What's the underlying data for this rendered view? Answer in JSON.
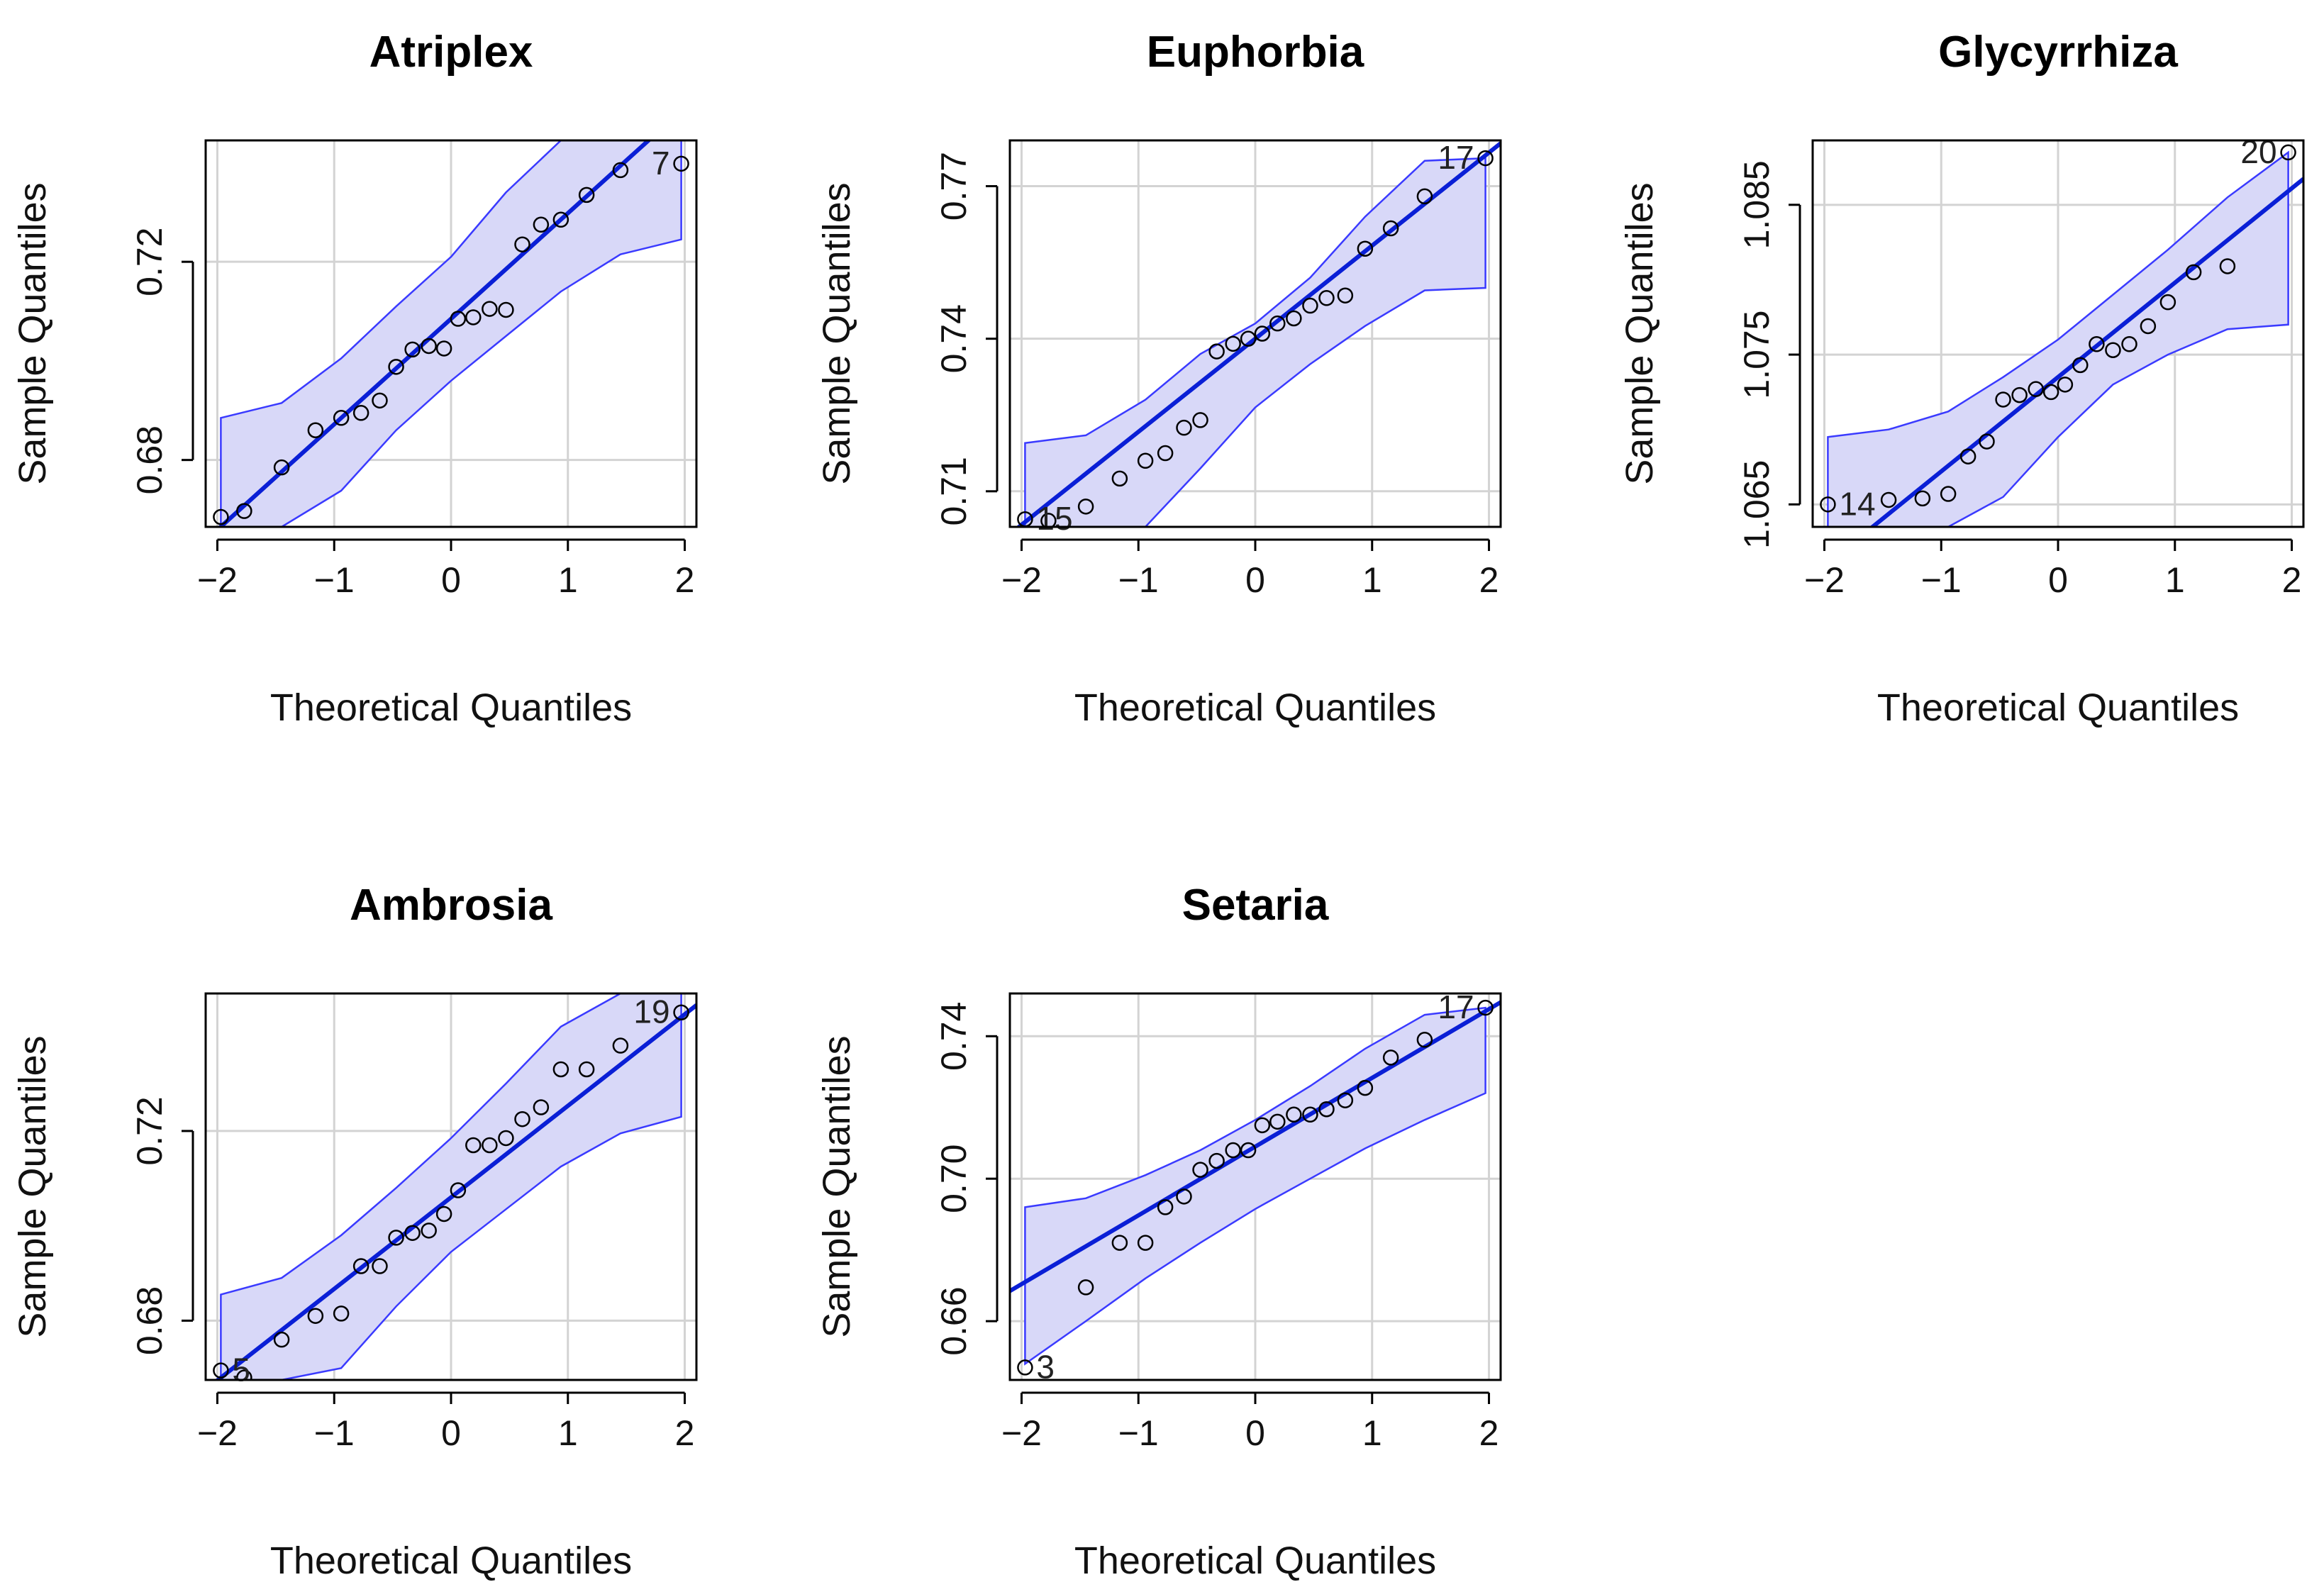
{
  "figure": {
    "type": "qq-plot-panel"
  },
  "chart_data": [
    {
      "type": "scatter",
      "title": "Atriplex",
      "xlabel": "Theoretical Quantiles",
      "ylabel": "Sample Quantiles",
      "xlim": [
        -2.1,
        2.1
      ],
      "ylim": [
        0.6665,
        0.7445
      ],
      "xticks": [
        -2,
        -1,
        0,
        1,
        2
      ],
      "xtick_labels": [
        "−2",
        "−1",
        "0",
        "1",
        "2"
      ],
      "yticks": [
        0.68,
        0.72
      ],
      "ytick_labels": [
        "0.68",
        "0.72"
      ],
      "x": [
        -1.97,
        -1.77,
        -1.45,
        -1.16,
        -0.94,
        -0.77,
        -0.61,
        -0.47,
        -0.33,
        -0.19,
        -0.06,
        0.06,
        0.19,
        0.33,
        0.47,
        0.61,
        0.77,
        0.94,
        1.16,
        1.45,
        1.97
      ],
      "y": [
        0.6685,
        0.6697,
        0.6785,
        0.686,
        0.6885,
        0.6895,
        0.692,
        0.6988,
        0.7023,
        0.703,
        0.7025,
        0.7085,
        0.7088,
        0.7105,
        0.7103,
        0.7235,
        0.7275,
        0.7285,
        0.7335,
        0.7385,
        0.7398
      ],
      "reference_line": {
        "slope": 0.0213,
        "intercept": 0.7085
      },
      "envelope": {
        "x": [
          -1.97,
          -1.45,
          -0.94,
          -0.47,
          0,
          0.47,
          0.94,
          1.45,
          1.97
        ],
        "lower": [
          0.6665,
          0.6665,
          0.6738,
          0.686,
          0.696,
          0.705,
          0.714,
          0.7215,
          0.7245
        ],
        "upper": [
          0.6885,
          0.6915,
          0.7005,
          0.711,
          0.721,
          0.734,
          0.7445,
          0.7445,
          0.7445
        ]
      },
      "point_labels": [
        {
          "label": "7",
          "x": 1.97,
          "y": 0.7398,
          "side": "left"
        }
      ]
    },
    {
      "type": "scatter",
      "title": "Euphorbia",
      "xlabel": "Theoretical Quantiles",
      "ylabel": "Sample Quantiles",
      "xlim": [
        -2.1,
        2.1
      ],
      "ylim": [
        0.703,
        0.779
      ],
      "xticks": [
        -2,
        -1,
        0,
        1,
        2
      ],
      "xtick_labels": [
        "−2",
        "−1",
        "0",
        "1",
        "2"
      ],
      "yticks": [
        0.71,
        0.74,
        0.77
      ],
      "ytick_labels": [
        "0.71",
        "0.74",
        "0.77"
      ],
      "x": [
        -1.97,
        -1.77,
        -1.45,
        -1.16,
        -0.94,
        -0.77,
        -0.61,
        -0.47,
        -0.33,
        -0.19,
        -0.06,
        0.06,
        0.19,
        0.33,
        0.47,
        0.61,
        0.77,
        0.94,
        1.16,
        1.45,
        1.97
      ],
      "y": [
        0.7045,
        0.7042,
        0.707,
        0.7125,
        0.716,
        0.7175,
        0.7225,
        0.724,
        0.7375,
        0.739,
        0.74,
        0.741,
        0.743,
        0.744,
        0.7465,
        0.748,
        0.7485,
        0.7577,
        0.7617,
        0.768,
        0.7755
      ],
      "reference_line": {
        "slope": 0.0183,
        "intercept": 0.74
      },
      "envelope": {
        "x": [
          -1.97,
          -1.45,
          -0.94,
          -0.47,
          0,
          0.47,
          0.94,
          1.45,
          1.97
        ],
        "lower": [
          0.703,
          0.703,
          0.703,
          0.7145,
          0.7265,
          0.735,
          0.7425,
          0.7495,
          0.75
        ],
        "upper": [
          0.7195,
          0.721,
          0.728,
          0.737,
          0.743,
          0.752,
          0.764,
          0.775,
          0.7755
        ]
      },
      "point_labels": [
        {
          "label": "17",
          "x": 1.97,
          "y": 0.7755,
          "side": "left"
        },
        {
          "label": "15",
          "x": -1.97,
          "y": 0.7045,
          "side": "right"
        }
      ]
    },
    {
      "type": "scatter",
      "title": "Glycyrrhiza",
      "xlabel": "Theoretical Quantiles",
      "ylabel": "Sample Quantiles",
      "xlim": [
        -2.1,
        2.1
      ],
      "ylim": [
        1.0635,
        1.0893
      ],
      "xticks": [
        -2,
        -1,
        0,
        1,
        2
      ],
      "xtick_labels": [
        "−2",
        "−1",
        "0",
        "1",
        "2"
      ],
      "yticks": [
        1.065,
        1.075,
        1.085
      ],
      "ytick_labels": [
        "1.065",
        "1.075",
        "1.085"
      ],
      "x": [
        -1.97,
        -1.45,
        -1.16,
        -0.94,
        -0.77,
        -0.61,
        -0.47,
        -0.33,
        -0.19,
        -0.06,
        0.06,
        0.19,
        0.33,
        0.47,
        0.61,
        0.77,
        0.94,
        1.16,
        1.45,
        1.97
      ],
      "y": [
        1.065,
        1.0653,
        1.0654,
        1.0657,
        1.0682,
        1.0692,
        1.072,
        1.0723,
        1.0727,
        1.0725,
        1.073,
        1.0743,
        1.0757,
        1.0753,
        1.0757,
        1.0769,
        1.0785,
        1.0805,
        1.0809,
        1.0885
      ],
      "reference_line": {
        "slope": 0.0063,
        "intercept": 1.0735
      },
      "envelope": {
        "x": [
          -1.97,
          -1.45,
          -0.94,
          -0.47,
          0,
          0.47,
          0.94,
          1.45,
          1.97
        ],
        "lower": [
          1.0635,
          1.0635,
          1.0635,
          1.0655,
          1.0695,
          1.073,
          1.075,
          1.0767,
          1.077
        ],
        "upper": [
          1.0695,
          1.07,
          1.0712,
          1.0735,
          1.076,
          1.079,
          1.082,
          1.0855,
          1.0885
        ]
      },
      "point_labels": [
        {
          "label": "20",
          "x": 1.97,
          "y": 1.0885,
          "side": "left"
        },
        {
          "label": "14",
          "x": -1.97,
          "y": 1.065,
          "side": "right"
        }
      ]
    },
    {
      "type": "scatter",
      "title": "Ambrosia",
      "xlabel": "Theoretical Quantiles",
      "ylabel": "Sample Quantiles",
      "xlim": [
        -2.1,
        2.1
      ],
      "ylim": [
        0.6675,
        0.749
      ],
      "xticks": [
        -2,
        -1,
        0,
        1,
        2
      ],
      "xtick_labels": [
        "−2",
        "−1",
        "0",
        "1",
        "2"
      ],
      "yticks": [
        0.68,
        0.72
      ],
      "ytick_labels": [
        "0.68",
        "0.72"
      ],
      "x": [
        -1.97,
        -1.77,
        -1.45,
        -1.16,
        -0.94,
        -0.77,
        -0.61,
        -0.47,
        -0.33,
        -0.19,
        -0.06,
        0.06,
        0.19,
        0.33,
        0.47,
        0.61,
        0.77,
        0.94,
        1.16,
        1.45,
        1.97
      ],
      "y": [
        0.6695,
        0.668,
        0.676,
        0.681,
        0.6815,
        0.6915,
        0.6915,
        0.6975,
        0.6985,
        0.699,
        0.7025,
        0.7075,
        0.717,
        0.717,
        0.7185,
        0.7225,
        0.725,
        0.733,
        0.733,
        0.738,
        0.745
      ],
      "reference_line": {
        "slope": 0.0193,
        "intercept": 0.706
      },
      "envelope": {
        "x": [
          -1.97,
          -1.45,
          -0.94,
          -0.47,
          0,
          0.47,
          0.94,
          1.45,
          1.97
        ],
        "lower": [
          0.6675,
          0.6675,
          0.67,
          0.683,
          0.6945,
          0.7035,
          0.7125,
          0.7195,
          0.723
        ],
        "upper": [
          0.6855,
          0.689,
          0.698,
          0.708,
          0.7185,
          0.73,
          0.742,
          0.749,
          0.749
        ]
      },
      "point_labels": [
        {
          "label": "19",
          "x": 1.97,
          "y": 0.745,
          "side": "left"
        },
        {
          "label": "5",
          "x": -1.97,
          "y": 0.6695,
          "side": "right"
        }
      ]
    },
    {
      "type": "scatter",
      "title": "Setaria",
      "xlabel": "Theoretical Quantiles",
      "ylabel": "Sample Quantiles",
      "xlim": [
        -2.1,
        2.1
      ],
      "ylim": [
        0.6435,
        0.752
      ],
      "xticks": [
        -2,
        -1,
        0,
        1,
        2
      ],
      "xtick_labels": [
        "−2",
        "−1",
        "0",
        "1",
        "2"
      ],
      "yticks": [
        0.66,
        0.7,
        0.74
      ],
      "ytick_labels": [
        "0.66",
        "0.70",
        "0.74"
      ],
      "x": [
        -1.97,
        -1.45,
        -1.16,
        -0.94,
        -0.77,
        -0.61,
        -0.47,
        -0.33,
        -0.19,
        -0.06,
        0.06,
        0.19,
        0.33,
        0.47,
        0.61,
        0.77,
        0.94,
        1.16,
        1.45,
        1.97
      ],
      "y": [
        0.647,
        0.6695,
        0.682,
        0.682,
        0.692,
        0.695,
        0.7025,
        0.705,
        0.708,
        0.708,
        0.715,
        0.716,
        0.718,
        0.718,
        0.7195,
        0.722,
        0.7255,
        0.734,
        0.739,
        0.748
      ],
      "reference_line": {
        "slope": 0.0193,
        "intercept": 0.709
      },
      "envelope": {
        "x": [
          -1.97,
          -1.45,
          -0.94,
          -0.47,
          0,
          0.47,
          0.94,
          1.45,
          1.97
        ],
        "lower": [
          0.648,
          0.66,
          0.672,
          0.682,
          0.6915,
          0.7,
          0.7085,
          0.7165,
          0.724
        ],
        "upper": [
          0.692,
          0.6945,
          0.701,
          0.708,
          0.7165,
          0.726,
          0.7365,
          0.746,
          0.748
        ]
      },
      "point_labels": [
        {
          "label": "17",
          "x": 1.97,
          "y": 0.748,
          "side": "left"
        },
        {
          "label": "3",
          "x": -1.97,
          "y": 0.647,
          "side": "right"
        }
      ]
    }
  ],
  "colors": {
    "band_fill": "#d8d8f8",
    "band_stroke": "#3a3aff",
    "line": "#0a1fd6",
    "grid": "#d3d3d3",
    "axis": "#000000",
    "point": "#000000"
  }
}
